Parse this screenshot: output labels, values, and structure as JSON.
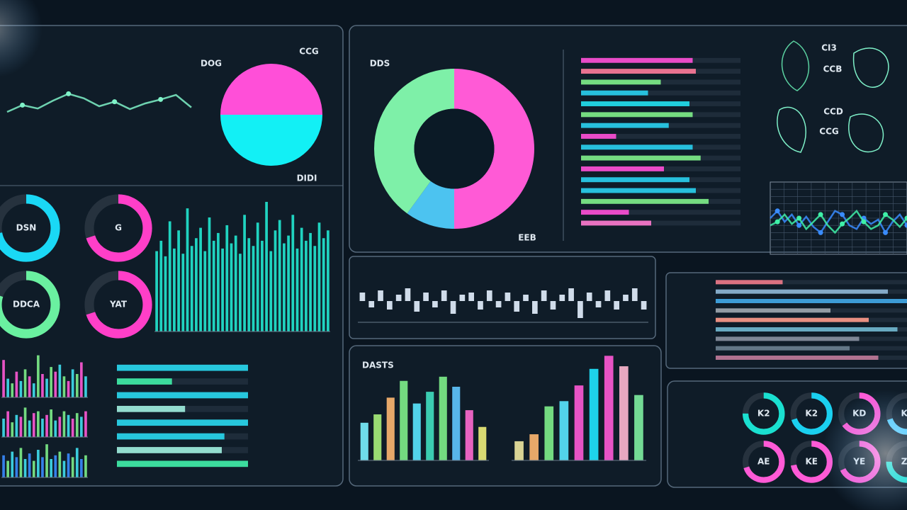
{
  "chart_data": [
    {
      "type": "line",
      "values": [
        40,
        52,
        46,
        60,
        72,
        64,
        50,
        58,
        45,
        55,
        62,
        70,
        48
      ],
      "ylim": [
        0,
        100
      ],
      "color": "#7ff2c8"
    },
    {
      "type": "pie",
      "values": [
        50,
        50
      ],
      "colors": [
        "#ff4fd8",
        "#12f0f5"
      ],
      "annotations": [
        "DOG",
        "CCG",
        "DIDI"
      ]
    },
    {
      "type": "pie",
      "donut": true,
      "values": [
        50,
        10,
        40
      ],
      "colors": [
        "#ff5ad6",
        "#4cc3f0",
        "#7ef0a8"
      ],
      "annotations": [
        "DDS",
        "EEB"
      ]
    },
    {
      "type": "gauge",
      "categories": [
        "DSN",
        "G",
        "DDCA",
        "YAT"
      ],
      "values": [
        72,
        70,
        80,
        70
      ],
      "colors": [
        "#1ad8f5",
        "#ff3fc8",
        "#6af0a0",
        "#ff3fc8"
      ]
    },
    {
      "type": "bar",
      "values": [
        62,
        70,
        58,
        85,
        64,
        78,
        60,
        95,
        66,
        72,
        80,
        62,
        88,
        70,
        76,
        64,
        82,
        68,
        74,
        60,
        90,
        72,
        66,
        84,
        70,
        100,
        62,
        78,
        86,
        68,
        74,
        90,
        64,
        80,
        70,
        76,
        66,
        84,
        72,
        78
      ],
      "ylim": [
        0,
        100
      ],
      "color": "#22e8d0"
    },
    {
      "type": "hbar",
      "values": [
        70,
        72,
        50,
        42,
        68,
        70,
        55,
        22,
        70,
        75,
        52,
        68,
        72,
        80,
        30,
        44
      ],
      "xlim": [
        0,
        100
      ],
      "colors": [
        "#ff4fd8",
        "#ff7a9a",
        "#7ef08a",
        "#28d0f0",
        "#20e0f0",
        "#7ef08a",
        "#28d0f0",
        "#ff4fd8",
        "#28d0f0",
        "#7ef08a",
        "#ff4fd8",
        "#28d0f0",
        "#28d0f0",
        "#7ef08a",
        "#ff4fd8",
        "#ff7ad0"
      ]
    },
    {
      "type": "line",
      "grid": true,
      "ylim": [
        0,
        100
      ],
      "series": [
        {
          "color": "#3a8cff",
          "values": [
            50,
            60,
            45,
            55,
            40,
            52,
            38,
            30,
            45,
            60,
            55,
            40,
            35,
            50,
            42,
            48,
            30,
            45,
            55,
            40
          ]
        },
        {
          "color": "#3ff0a8",
          "values": [
            40,
            45,
            55,
            42,
            50,
            35,
            45,
            55,
            40,
            30,
            42,
            50,
            60,
            45,
            35,
            40,
            55,
            48,
            38,
            50
          ]
        }
      ]
    },
    {
      "type": "bar",
      "values": [
        4,
        -3,
        5,
        -4,
        3,
        6,
        -5,
        4,
        -3,
        5,
        -6,
        3,
        4,
        -4,
        5,
        -3,
        4,
        -5,
        3,
        -6,
        5,
        -4,
        3,
        6,
        -8,
        4,
        -3,
        5,
        -4,
        3,
        6,
        -4
      ],
      "ylim": [
        -10,
        10
      ],
      "color": "#e6f2ff"
    },
    {
      "type": "hbar",
      "values": [
        35,
        90,
        100,
        60,
        80,
        95,
        75,
        70,
        85
      ],
      "xlim": [
        0,
        100
      ],
      "colors": [
        "#f07a8a",
        "#8fb8d8",
        "#40a8e8",
        "#a0a8b0",
        "#ff9a8a",
        "#70b8d0",
        "#8890a0",
        "#6a8090",
        "#c07a9a"
      ]
    },
    {
      "type": "bar",
      "title": "DASTS",
      "values": [
        45,
        55,
        75,
        95,
        68,
        82,
        100,
        88,
        60,
        40
      ],
      "ylim": [
        0,
        110
      ],
      "colors": [
        "#7af2ff",
        "#a8f07a",
        "#ffb870",
        "#7ef08a",
        "#5ae8ff",
        "#40e0c0",
        "#7ef08a",
        "#60c8ff",
        "#ff6ad0",
        "#f0f07a"
      ]
    },
    {
      "type": "bar",
      "values": [
        22,
        30,
        62,
        68,
        86,
        105,
        120,
        108,
        75
      ],
      "ylim": [
        0,
        130
      ],
      "colors": [
        "#f0e8a0",
        "#ffb870",
        "#7ef08a",
        "#5ae8ff",
        "#ff5ad6",
        "#20e8ff",
        "#ff5ad6",
        "#ffb8d0",
        "#7ef0a0"
      ]
    },
    {
      "type": "bar",
      "values": [
        80,
        40,
        30,
        55,
        35,
        60,
        45,
        30,
        90,
        50,
        40,
        65,
        55,
        70,
        45,
        35,
        60,
        50,
        75,
        45
      ],
      "ylim": [
        0,
        100
      ],
      "colors": [
        "#ff5ad6",
        "#40e0f0",
        "#7ef08a"
      ]
    },
    {
      "type": "bar",
      "values": [
        50,
        70,
        40,
        60,
        55,
        80,
        45,
        65,
        70,
        50,
        60,
        75,
        45,
        55,
        70,
        60,
        50,
        65,
        55,
        70
      ],
      "ylim": [
        0,
        100
      ],
      "colors": [
        "#40e0f0",
        "#ff5ad6",
        "#7ef08a"
      ]
    },
    {
      "type": "bar",
      "values": [
        60,
        45,
        70,
        55,
        80,
        50,
        65,
        45,
        75,
        55,
        90,
        50,
        60,
        70,
        45,
        65,
        55,
        80,
        50,
        60
      ],
      "ylim": [
        0,
        100
      ],
      "colors": [
        "#3a8cff",
        "#7ef08a",
        "#40e0f0"
      ]
    },
    {
      "type": "hbar",
      "values": [
        100,
        42,
        100,
        52,
        100,
        82,
        80,
        100
      ],
      "xlim": [
        0,
        100
      ],
      "colors": [
        "#28d8f0",
        "#3ff0a8",
        "#28d8f0",
        "#a0f0e0",
        "#28d8f0",
        "#28d8f0",
        "#a0f0e0",
        "#3ff0a8"
      ]
    },
    {
      "type": "gauge",
      "categories": [
        "K2",
        "K2",
        "KD",
        "KC",
        "AE",
        "KE",
        "YE",
        "ZE"
      ],
      "values": [
        75,
        70,
        65,
        70,
        70,
        72,
        68,
        75
      ],
      "colors": [
        "#1ae0d0",
        "#1ad0f0",
        "#ff5ad6",
        "#5ad0ff",
        "#ff5ad6",
        "#ff5ad6",
        "#ff5ad6",
        "#1ae0d0"
      ]
    }
  ],
  "network_labels": [
    "CI3",
    "CCB",
    "CCD",
    "CCG"
  ]
}
